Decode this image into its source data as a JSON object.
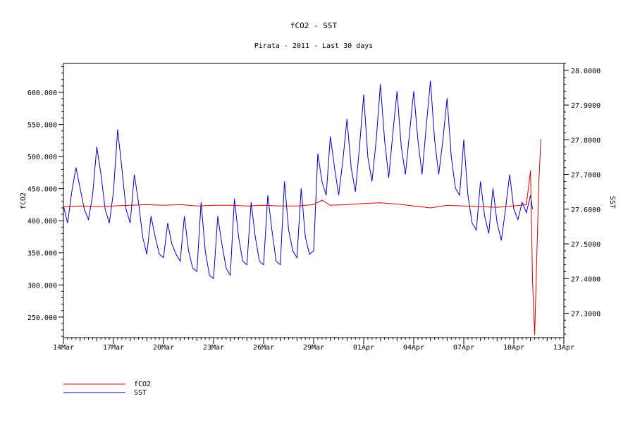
{
  "chart_data": {
    "type": "line",
    "title": "fCO2 - SST",
    "subtitle": "Pirata - 2011 - Last 30 days",
    "ylabel_left": "fCO2",
    "ylabel_right": "SST",
    "x_range": [
      "2011-03-14",
      "2011-04-13"
    ],
    "x_ticks": [
      {
        "date": "2011-03-14",
        "label": "14Mar"
      },
      {
        "date": "2011-03-17",
        "label": "17Mar"
      },
      {
        "date": "2011-03-20",
        "label": "20Mar"
      },
      {
        "date": "2011-03-23",
        "label": "23Mar"
      },
      {
        "date": "2011-03-26",
        "label": "26Mar"
      },
      {
        "date": "2011-03-29",
        "label": "29Mar"
      },
      {
        "date": "2011-04-01",
        "label": "01Apr"
      },
      {
        "date": "2011-04-04",
        "label": "04Apr"
      },
      {
        "date": "2011-04-07",
        "label": "07Apr"
      },
      {
        "date": "2011-04-10",
        "label": "10Apr"
      },
      {
        "date": "2011-04-13",
        "label": "13Apr"
      }
    ],
    "y_left_range": [
      218,
      645
    ],
    "y_left_ticks": [
      "250.000",
      "300.000",
      "350.000",
      "400.000",
      "450.000",
      "500.000",
      "550.000",
      "600.000"
    ],
    "y_right_range": [
      27.23,
      28.02
    ],
    "y_right_ticks": [
      "27.3000",
      "27.4000",
      "27.5000",
      "27.6000",
      "27.7000",
      "27.8000",
      "27.9000",
      "28.0000"
    ],
    "legend_position": "bottom-left",
    "grid": false,
    "series": [
      {
        "name": "fCO2",
        "color": "#d40000",
        "axis": "left",
        "points": [
          [
            "2011-03-14T00:00",
            422
          ],
          [
            "2011-03-15T00:00",
            423
          ],
          [
            "2011-03-16T00:00",
            422
          ],
          [
            "2011-03-17T00:00",
            423
          ],
          [
            "2011-03-18T00:00",
            424
          ],
          [
            "2011-03-19T00:00",
            425
          ],
          [
            "2011-03-20T00:00",
            424
          ],
          [
            "2011-03-21T00:00",
            425
          ],
          [
            "2011-03-22T00:00",
            423
          ],
          [
            "2011-03-23T00:00",
            424
          ],
          [
            "2011-03-24T00:00",
            424
          ],
          [
            "2011-03-25T00:00",
            423
          ],
          [
            "2011-03-26T00:00",
            424
          ],
          [
            "2011-03-27T00:00",
            423
          ],
          [
            "2011-03-28T00:00",
            423
          ],
          [
            "2011-03-29T00:00",
            425
          ],
          [
            "2011-03-29T12:00",
            432
          ],
          [
            "2011-03-30T00:00",
            424
          ],
          [
            "2011-03-31T00:00",
            425
          ],
          [
            "2011-04-01T00:00",
            427
          ],
          [
            "2011-04-02T00:00",
            428
          ],
          [
            "2011-04-03T00:00",
            426
          ],
          [
            "2011-04-04T00:00",
            423
          ],
          [
            "2011-04-05T00:00",
            420
          ],
          [
            "2011-04-06T00:00",
            424
          ],
          [
            "2011-04-07T00:00",
            423
          ],
          [
            "2011-04-08T00:00",
            422
          ],
          [
            "2011-04-09T00:00",
            421
          ],
          [
            "2011-04-10T00:00",
            423
          ],
          [
            "2011-04-10T18:00",
            425
          ],
          [
            "2011-04-11T00:00",
            478
          ],
          [
            "2011-04-11T03:00",
            305
          ],
          [
            "2011-04-11T06:00",
            222
          ],
          [
            "2011-04-11T09:00",
            340
          ],
          [
            "2011-04-11T12:00",
            460
          ],
          [
            "2011-04-11T15:00",
            527
          ]
        ]
      },
      {
        "name": "SST",
        "color": "#0000c8",
        "axis": "right",
        "points": [
          [
            "2011-03-14T00:00",
            27.61
          ],
          [
            "2011-03-14T06:00",
            27.56
          ],
          [
            "2011-03-14T12:00",
            27.65
          ],
          [
            "2011-03-14T18:00",
            27.72
          ],
          [
            "2011-03-15T00:00",
            27.66
          ],
          [
            "2011-03-15T06:00",
            27.6
          ],
          [
            "2011-03-15T12:00",
            27.57
          ],
          [
            "2011-03-15T18:00",
            27.64
          ],
          [
            "2011-03-16T00:00",
            27.78
          ],
          [
            "2011-03-16T06:00",
            27.7
          ],
          [
            "2011-03-16T12:00",
            27.6
          ],
          [
            "2011-03-16T18:00",
            27.56
          ],
          [
            "2011-03-17T00:00",
            27.65
          ],
          [
            "2011-03-17T06:00",
            27.83
          ],
          [
            "2011-03-17T12:00",
            27.72
          ],
          [
            "2011-03-17T18:00",
            27.6
          ],
          [
            "2011-03-18T00:00",
            27.56
          ],
          [
            "2011-03-18T06:00",
            27.7
          ],
          [
            "2011-03-18T12:00",
            27.62
          ],
          [
            "2011-03-18T18:00",
            27.52
          ],
          [
            "2011-03-19T00:00",
            27.47
          ],
          [
            "2011-03-19T06:00",
            27.58
          ],
          [
            "2011-03-19T12:00",
            27.52
          ],
          [
            "2011-03-19T18:00",
            27.47
          ],
          [
            "2011-03-20T00:00",
            27.46
          ],
          [
            "2011-03-20T06:00",
            27.56
          ],
          [
            "2011-03-20T12:00",
            27.5
          ],
          [
            "2011-03-20T18:00",
            27.47
          ],
          [
            "2011-03-21T00:00",
            27.45
          ],
          [
            "2011-03-21T06:00",
            27.58
          ],
          [
            "2011-03-21T12:00",
            27.48
          ],
          [
            "2011-03-21T18:00",
            27.43
          ],
          [
            "2011-03-22T00:00",
            27.42
          ],
          [
            "2011-03-22T06:00",
            27.62
          ],
          [
            "2011-03-22T12:00",
            27.48
          ],
          [
            "2011-03-22T18:00",
            27.41
          ],
          [
            "2011-03-23T00:00",
            27.4
          ],
          [
            "2011-03-23T06:00",
            27.58
          ],
          [
            "2011-03-23T12:00",
            27.5
          ],
          [
            "2011-03-23T18:00",
            27.43
          ],
          [
            "2011-03-24T00:00",
            27.41
          ],
          [
            "2011-03-24T06:00",
            27.63
          ],
          [
            "2011-03-24T12:00",
            27.52
          ],
          [
            "2011-03-24T18:00",
            27.45
          ],
          [
            "2011-03-25T00:00",
            27.44
          ],
          [
            "2011-03-25T06:00",
            27.62
          ],
          [
            "2011-03-25T12:00",
            27.52
          ],
          [
            "2011-03-25T18:00",
            27.45
          ],
          [
            "2011-03-26T00:00",
            27.44
          ],
          [
            "2011-03-26T06:00",
            27.64
          ],
          [
            "2011-03-26T12:00",
            27.54
          ],
          [
            "2011-03-26T18:00",
            27.45
          ],
          [
            "2011-03-27T00:00",
            27.44
          ],
          [
            "2011-03-27T06:00",
            27.68
          ],
          [
            "2011-03-27T12:00",
            27.54
          ],
          [
            "2011-03-27T18:00",
            27.48
          ],
          [
            "2011-03-28T00:00",
            27.46
          ],
          [
            "2011-03-28T06:00",
            27.66
          ],
          [
            "2011-03-28T12:00",
            27.52
          ],
          [
            "2011-03-28T18:00",
            27.47
          ],
          [
            "2011-03-29T00:00",
            27.48
          ],
          [
            "2011-03-29T06:00",
            27.76
          ],
          [
            "2011-03-29T12:00",
            27.68
          ],
          [
            "2011-03-29T18:00",
            27.64
          ],
          [
            "2011-03-30T00:00",
            27.81
          ],
          [
            "2011-03-30T06:00",
            27.72
          ],
          [
            "2011-03-30T12:00",
            27.64
          ],
          [
            "2011-03-30T18:00",
            27.74
          ],
          [
            "2011-03-31T00:00",
            27.86
          ],
          [
            "2011-03-31T06:00",
            27.72
          ],
          [
            "2011-03-31T12:00",
            27.65
          ],
          [
            "2011-03-31T18:00",
            27.78
          ],
          [
            "2011-04-01T00:00",
            27.93
          ],
          [
            "2011-04-01T06:00",
            27.75
          ],
          [
            "2011-04-01T12:00",
            27.68
          ],
          [
            "2011-04-01T18:00",
            27.8
          ],
          [
            "2011-04-02T00:00",
            27.96
          ],
          [
            "2011-04-02T06:00",
            27.8
          ],
          [
            "2011-04-02T12:00",
            27.69
          ],
          [
            "2011-04-02T18:00",
            27.82
          ],
          [
            "2011-04-03T00:00",
            27.94
          ],
          [
            "2011-04-03T06:00",
            27.78
          ],
          [
            "2011-04-03T12:00",
            27.7
          ],
          [
            "2011-04-03T18:00",
            27.82
          ],
          [
            "2011-04-04T00:00",
            27.94
          ],
          [
            "2011-04-04T06:00",
            27.8
          ],
          [
            "2011-04-04T12:00",
            27.7
          ],
          [
            "2011-04-04T18:00",
            27.84
          ],
          [
            "2011-04-05T00:00",
            27.97
          ],
          [
            "2011-04-05T06:00",
            27.8
          ],
          [
            "2011-04-05T12:00",
            27.7
          ],
          [
            "2011-04-05T18:00",
            27.8
          ],
          [
            "2011-04-06T00:00",
            27.92
          ],
          [
            "2011-04-06T06:00",
            27.75
          ],
          [
            "2011-04-06T12:00",
            27.66
          ],
          [
            "2011-04-06T18:00",
            27.64
          ],
          [
            "2011-04-07T00:00",
            27.8
          ],
          [
            "2011-04-07T06:00",
            27.64
          ],
          [
            "2011-04-07T12:00",
            27.56
          ],
          [
            "2011-04-07T18:00",
            27.54
          ],
          [
            "2011-04-08T00:00",
            27.68
          ],
          [
            "2011-04-08T06:00",
            27.58
          ],
          [
            "2011-04-08T12:00",
            27.53
          ],
          [
            "2011-04-08T18:00",
            27.66
          ],
          [
            "2011-04-09T00:00",
            27.56
          ],
          [
            "2011-04-09T06:00",
            27.51
          ],
          [
            "2011-04-09T12:00",
            27.6
          ],
          [
            "2011-04-09T18:00",
            27.7
          ],
          [
            "2011-04-10T00:00",
            27.6
          ],
          [
            "2011-04-10T06:00",
            27.57
          ],
          [
            "2011-04-10T12:00",
            27.62
          ],
          [
            "2011-04-10T18:00",
            27.59
          ],
          [
            "2011-04-11T00:00",
            27.64
          ],
          [
            "2011-04-11T03:00",
            27.6
          ]
        ]
      }
    ]
  }
}
